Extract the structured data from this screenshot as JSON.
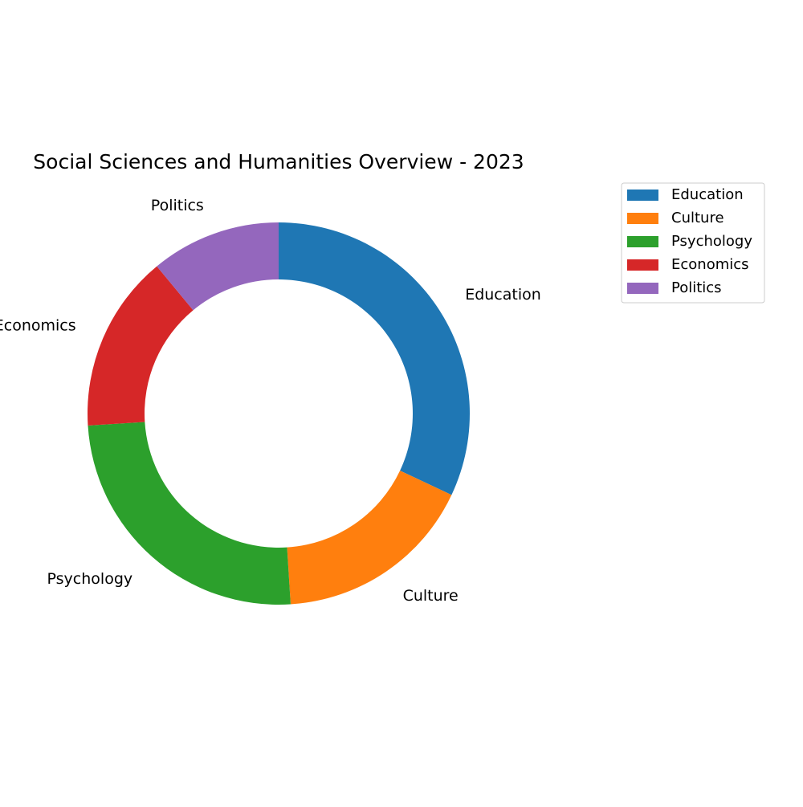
{
  "chart_data": {
    "type": "pie",
    "variant": "donut",
    "title": "Social Sciences and Humanities Overview - 2023",
    "categories": [
      "Education",
      "Culture",
      "Psychology",
      "Economics",
      "Politics"
    ],
    "values": [
      32,
      17,
      25,
      15,
      11
    ],
    "colors": [
      "#1f77b4",
      "#ff7f0e",
      "#2ca02c",
      "#d62728",
      "#9467bd"
    ],
    "start_angle": "top",
    "direction": "clockwise",
    "legend": {
      "placement": "top-right",
      "entries": [
        "Education",
        "Culture",
        "Psychology",
        "Economics",
        "Politics"
      ]
    }
  }
}
